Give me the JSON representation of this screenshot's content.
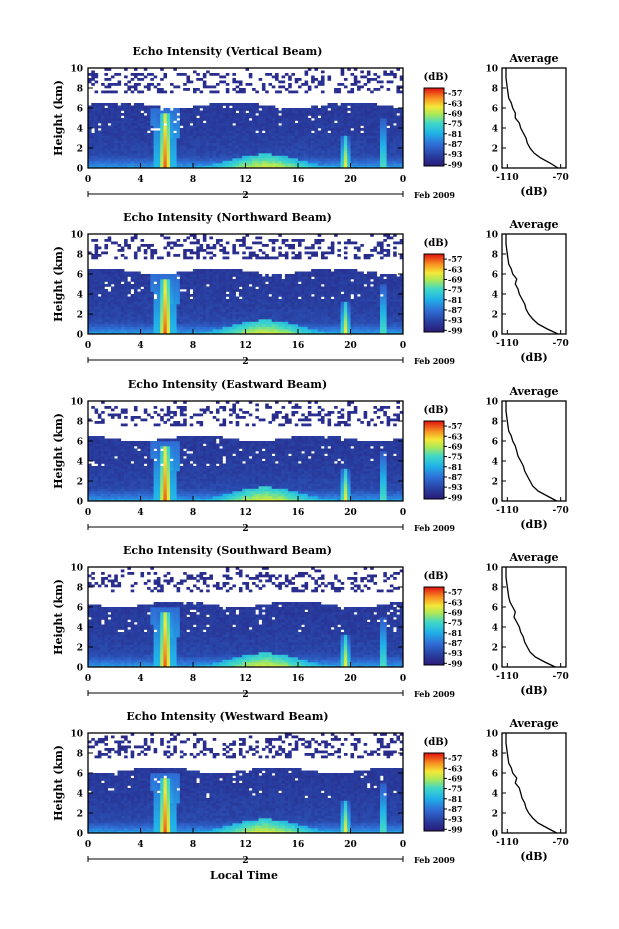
{
  "figure": {
    "xlabel_bottom": "Local Time",
    "date_label": "Feb 2009",
    "colorbar_unit": "(dB)",
    "colorbar_ticks": [
      "-57",
      "-63",
      "-69",
      "-75",
      "-81",
      "-87",
      "-93",
      "-99"
    ],
    "colorbar_ticks_num": [
      -57,
      -63,
      -69,
      -75,
      -81,
      -87,
      -93,
      -99
    ],
    "colorbar_range": [
      -100,
      -54
    ],
    "average_title": "Average",
    "average_xlabel": "(dB)",
    "average_xticks": [
      "-110",
      "-70"
    ],
    "average_xticks_num": [
      -110,
      -70
    ],
    "average_xlim": [
      -114,
      -66
    ],
    "ylabel": "Height (km)",
    "yticks": [
      "0",
      "2",
      "4",
      "6",
      "8",
      "10"
    ],
    "ylim": [
      0,
      10
    ],
    "xticks": [
      "0",
      "4",
      "8",
      "12",
      "16",
      "20",
      "0"
    ],
    "xlim": [
      0,
      24
    ],
    "date_marker": "2"
  },
  "chart_data": [
    {
      "type": "heatmap",
      "title": "Echo Intensity (Vertical Beam)",
      "xlabel": "",
      "ylabel": "Height (km)",
      "xlim": [
        0,
        24
      ],
      "ylim": [
        0,
        10
      ],
      "colorbar": "(dB)",
      "average_profile": {
        "height_km": [
          0,
          0.5,
          1,
          1.5,
          2,
          2.5,
          3,
          3.5,
          4,
          4.5,
          5,
          5.5,
          6,
          6.5,
          7,
          8,
          9,
          10
        ],
        "db": [
          -72,
          -78,
          -85,
          -90,
          -93,
          -95,
          -96,
          -98,
          -100,
          -101,
          -104,
          -104,
          -106,
          -107,
          -109,
          -110,
          -111,
          -111
        ]
      }
    },
    {
      "type": "heatmap",
      "title": "Echo Intensity (Northward Beam)",
      "xlabel": "",
      "ylabel": "Height (km)",
      "xlim": [
        0,
        24
      ],
      "ylim": [
        0,
        10
      ],
      "colorbar": "(dB)",
      "average_profile": {
        "height_km": [
          0,
          0.5,
          1,
          1.5,
          2,
          2.5,
          3,
          3.5,
          4,
          4.5,
          5,
          5.5,
          6,
          6.5,
          7,
          8,
          9,
          10
        ],
        "db": [
          -72,
          -80,
          -87,
          -91,
          -94,
          -96,
          -97,
          -99,
          -101,
          -102,
          -104,
          -103,
          -106,
          -107,
          -109,
          -110,
          -111,
          -111
        ]
      }
    },
    {
      "type": "heatmap",
      "title": "Echo Intensity (Eastward Beam)",
      "xlabel": "",
      "ylabel": "Height (km)",
      "xlim": [
        0,
        24
      ],
      "ylim": [
        0,
        10
      ],
      "colorbar": "(dB)",
      "average_profile": {
        "height_km": [
          0,
          0.5,
          1,
          1.5,
          2,
          2.5,
          3,
          3.5,
          4,
          4.5,
          5,
          5.5,
          6,
          6.5,
          7,
          8,
          9,
          10
        ],
        "db": [
          -73,
          -80,
          -87,
          -91,
          -93,
          -95,
          -97,
          -98,
          -100,
          -102,
          -103,
          -104,
          -106,
          -107,
          -109,
          -110,
          -111,
          -111
        ]
      }
    },
    {
      "type": "heatmap",
      "title": "Echo Intensity (Southward Beam)",
      "xlabel": "",
      "ylabel": "Height (km)",
      "xlim": [
        0,
        24
      ],
      "ylim": [
        0,
        10
      ],
      "colorbar": "(dB)",
      "average_profile": {
        "height_km": [
          0,
          0.5,
          1,
          1.5,
          2,
          2.5,
          3,
          3.5,
          4,
          4.5,
          5,
          5.5,
          6,
          6.5,
          7,
          8,
          9,
          10
        ],
        "db": [
          -74,
          -82,
          -89,
          -93,
          -95,
          -97,
          -98,
          -100,
          -101,
          -103,
          -105,
          -104,
          -106,
          -108,
          -109,
          -110,
          -111,
          -111
        ]
      }
    },
    {
      "type": "heatmap",
      "title": "Echo Intensity (Westward Beam)",
      "xlabel": "",
      "ylabel": "Height (km)",
      "xlim": [
        0,
        24
      ],
      "ylim": [
        0,
        10
      ],
      "colorbar": "(dB)",
      "average_profile": {
        "height_km": [
          0,
          0.5,
          1,
          1.5,
          2,
          2.5,
          3,
          3.5,
          4,
          4.5,
          5,
          5.5,
          6,
          6.5,
          7,
          8,
          9,
          10
        ],
        "db": [
          -73,
          -80,
          -87,
          -91,
          -94,
          -96,
          -97,
          -99,
          -100,
          -101,
          -104,
          -103,
          -106,
          -107,
          -109,
          -110,
          -111,
          -111
        ]
      }
    }
  ]
}
